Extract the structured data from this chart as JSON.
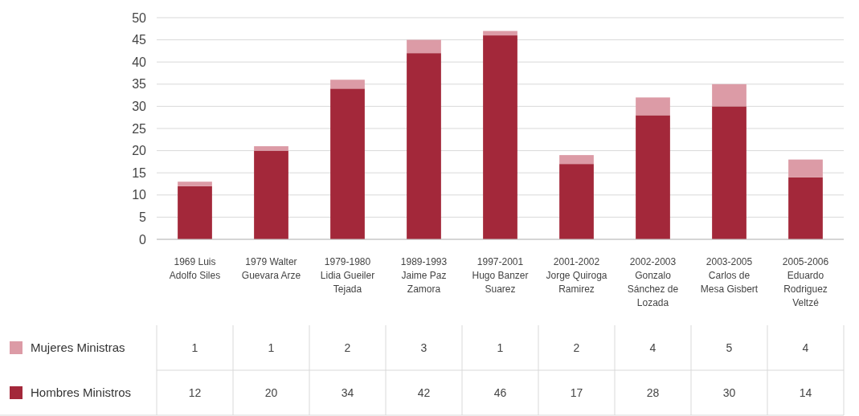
{
  "chart_data": {
    "type": "bar",
    "stacked": true,
    "categories": [
      "1969 Luis Adolfo Siles",
      "1979 Walter Guevara Arze",
      "1979-1980 Lidia Gueiler Tejada",
      "1989-1993 Jaime Paz Zamora",
      "1997-2001 Hugo Banzer Suarez",
      "2001-2002 Jorge Quiroga Ramirez",
      "2002-2003 Gonzalo Sánchez de Lozada",
      "2003-2005 Carlos de Mesa Gisbert",
      "2005-2006 Eduardo Rodriguez Veltzé"
    ],
    "series": [
      {
        "name": "Hombres Ministros",
        "color": "#a3283a",
        "values": [
          12,
          20,
          34,
          42,
          46,
          17,
          28,
          30,
          14
        ]
      },
      {
        "name": "Mujeres Ministras",
        "color": "#dc9ba6",
        "values": [
          1,
          1,
          2,
          3,
          1,
          2,
          4,
          5,
          4
        ]
      }
    ],
    "ylim": [
      0,
      50
    ],
    "yticks": [
      0,
      5,
      10,
      15,
      20,
      25,
      30,
      35,
      40,
      45,
      50
    ],
    "grid": "y",
    "legend": "bottom",
    "data_labels": true
  }
}
